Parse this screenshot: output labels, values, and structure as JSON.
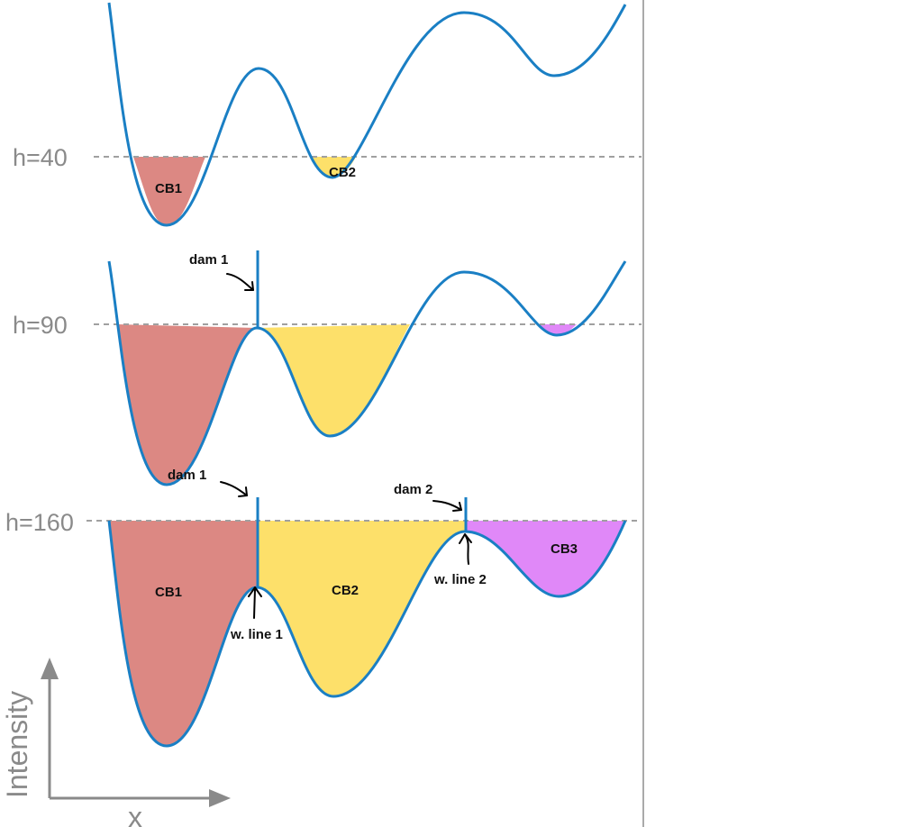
{
  "colors": {
    "curve": "#1a7fc4",
    "cb1": "#dc8883",
    "cb2": "#fde06a",
    "cb3": "#e088f8",
    "dashed": "#a0a0a0",
    "axis": "#8a8a8a",
    "annotation": "#000000"
  },
  "panel1": {
    "level_label": "h=40",
    "basin1_label": "CB1",
    "basin2_label": "CB2"
  },
  "panel2": {
    "level_label": "h=90",
    "dam_label": "dam 1"
  },
  "panel3": {
    "level_label": "h=160",
    "dam1_label": "dam 1",
    "dam2_label": "dam 2",
    "basin1_label": "CB1",
    "basin2_label": "CB2",
    "basin3_label": "CB3",
    "wline1_label": "w. line 1",
    "wline2_label": "w. line 2"
  },
  "axes": {
    "y_label": "Intensity",
    "x_label": "x"
  }
}
